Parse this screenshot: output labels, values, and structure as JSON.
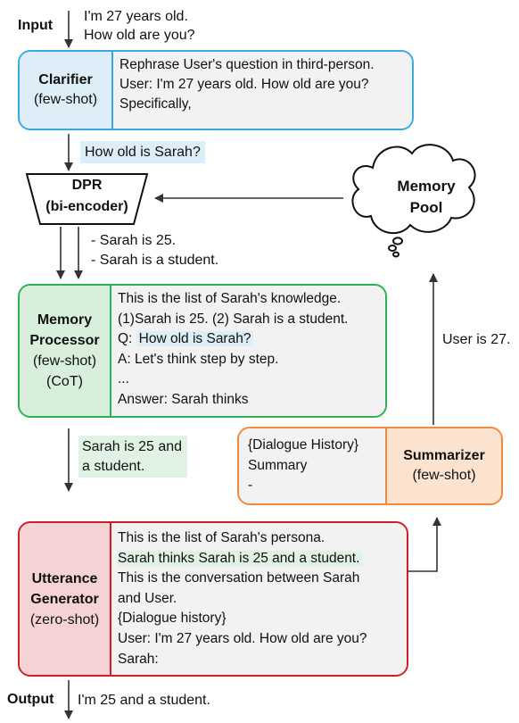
{
  "input": {
    "label": "Input",
    "lines": [
      "I'm 27 years old.",
      "How old are you?"
    ]
  },
  "clarifier": {
    "title": "Clarifier",
    "mode": "(few-shot)",
    "lines": [
      "Rephrase User's question in third-person.",
      "User:  I'm 27 years old. How old are you?",
      "Specifically,"
    ],
    "output": "How old is Sarah?"
  },
  "dpr": {
    "title": "DPR",
    "subtitle": "(bi-encoder)",
    "results": [
      "- Sarah is 25.",
      "- Sarah is a student."
    ]
  },
  "memory_pool": {
    "label": "Memory Pool",
    "lines": [
      "Memory",
      "Pool"
    ]
  },
  "memory_processor": {
    "title_lines": [
      "Memory",
      "Processor"
    ],
    "mode": "(few-shot)",
    "mode2": "(CoT)",
    "lines": {
      "l1": "This is the list of Sarah's knowledge.",
      "l2": "(1)Sarah is 25. (2) Sarah is a student.",
      "l3_prefix": "Q: ",
      "l3_hl": "How old is Sarah?",
      "l4": "A: Let's think step by step.",
      "l5": "...",
      "l6": "Answer: Sarah thinks"
    },
    "output_lines": [
      "Sarah is 25 and",
      "a student."
    ]
  },
  "summarizer": {
    "title": "Summarizer",
    "mode": "(few-shot)",
    "lines": [
      "{Dialogue History}",
      "Summary",
      "-"
    ],
    "output": "User is 27."
  },
  "utterance_generator": {
    "title_lines": [
      "Utterance",
      "Generator"
    ],
    "mode": "(zero-shot)",
    "lines": {
      "l1": "This is the list of Sarah's persona.",
      "l2_hl": "Sarah thinks Sarah is 25 and a student.",
      "l3": "This is the conversation between Sarah",
      "l4": "and User.",
      "l5": "{Dialogue history}",
      "l6": "User: I'm 27 years old. How old are you?",
      "l7": "Sarah:"
    }
  },
  "output": {
    "label": "Output",
    "text": "I'm 25 and a student."
  },
  "colors": {
    "clarifier_border": "#3aa9de",
    "clarifier_fill": "#ddeef8",
    "processor_border": "#2db05a",
    "processor_fill": "#d8efdc",
    "summarizer_border": "#ef8a3c",
    "summarizer_fill": "#fbe3d0",
    "generator_border": "#cc2027",
    "generator_fill": "#f5d3d4",
    "arrow": "#333333"
  }
}
